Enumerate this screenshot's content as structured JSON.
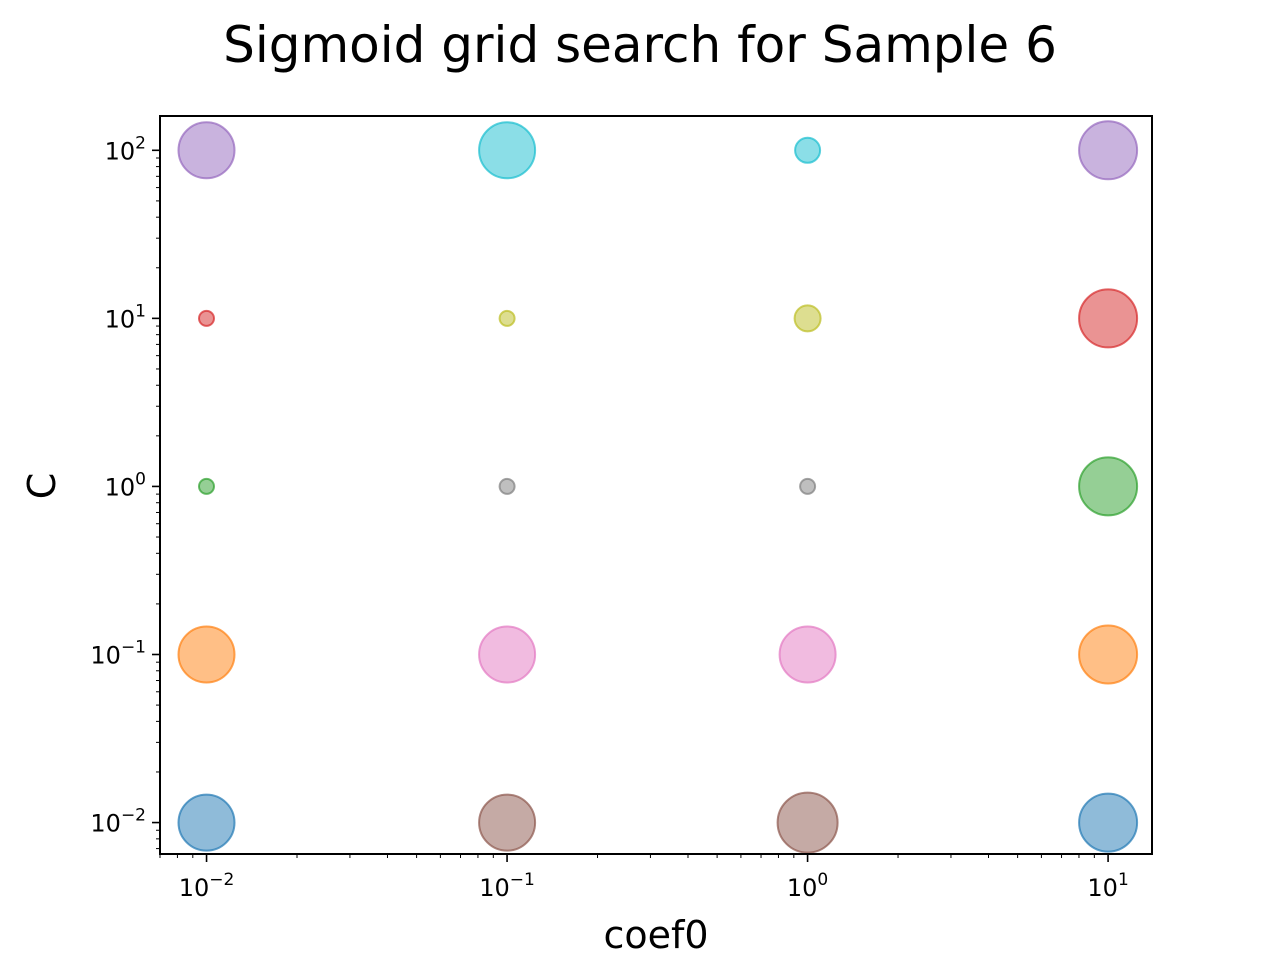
{
  "chart_data": {
    "type": "scatter",
    "title": "Sigmoid grid search for Sample 6",
    "xlabel": "coef0",
    "ylabel": "C",
    "xscale": "log",
    "yscale": "log",
    "xlim": [
      0.007,
      14
    ],
    "ylim": [
      0.0065,
      160
    ],
    "x_ticks": [
      {
        "value": 0.01,
        "base": "10",
        "exp": "−2"
      },
      {
        "value": 0.1,
        "base": "10",
        "exp": "−1"
      },
      {
        "value": 1,
        "base": "10",
        "exp": "0"
      },
      {
        "value": 10,
        "base": "10",
        "exp": "1"
      }
    ],
    "y_ticks": [
      {
        "value": 0.01,
        "base": "10",
        "exp": "−2"
      },
      {
        "value": 0.1,
        "base": "10",
        "exp": "−1"
      },
      {
        "value": 1,
        "base": "10",
        "exp": "0"
      },
      {
        "value": 10,
        "base": "10",
        "exp": "1"
      },
      {
        "value": 100,
        "base": "10",
        "exp": "2"
      }
    ],
    "grid": false,
    "points": [
      {
        "x": 0.01,
        "y": 0.01,
        "size": 28,
        "color": "#1f77b4"
      },
      {
        "x": 0.01,
        "y": 0.1,
        "size": 28,
        "color": "#ff7f0e"
      },
      {
        "x": 0.01,
        "y": 1,
        "size": 7.5,
        "color": "#2ca02c"
      },
      {
        "x": 0.01,
        "y": 10,
        "size": 7.5,
        "color": "#d62728"
      },
      {
        "x": 0.01,
        "y": 100,
        "size": 28,
        "color": "#9467bd"
      },
      {
        "x": 0.1,
        "y": 0.01,
        "size": 28,
        "color": "#8c564b"
      },
      {
        "x": 0.1,
        "y": 0.1,
        "size": 28,
        "color": "#e377c2"
      },
      {
        "x": 0.1,
        "y": 1,
        "size": 7.5,
        "color": "#7f7f7f"
      },
      {
        "x": 0.1,
        "y": 10,
        "size": 7.5,
        "color": "#bcbd22"
      },
      {
        "x": 0.1,
        "y": 100,
        "size": 28,
        "color": "#17becf"
      },
      {
        "x": 1,
        "y": 0.01,
        "size": 30,
        "color": "#8c564b"
      },
      {
        "x": 1,
        "y": 0.1,
        "size": 28,
        "color": "#e377c2"
      },
      {
        "x": 1,
        "y": 1,
        "size": 7.5,
        "color": "#7f7f7f"
      },
      {
        "x": 1,
        "y": 10,
        "size": 13,
        "color": "#bcbd22"
      },
      {
        "x": 1,
        "y": 100,
        "size": 12.5,
        "color": "#17becf"
      },
      {
        "x": 10,
        "y": 0.01,
        "size": 29,
        "color": "#1f77b4"
      },
      {
        "x": 10,
        "y": 0.1,
        "size": 29,
        "color": "#ff7f0e"
      },
      {
        "x": 10,
        "y": 1,
        "size": 29,
        "color": "#2ca02c"
      },
      {
        "x": 10,
        "y": 10,
        "size": 29,
        "color": "#d62728"
      },
      {
        "x": 10,
        "y": 100,
        "size": 29,
        "color": "#9467bd"
      }
    ],
    "marker_alpha": 0.5
  }
}
